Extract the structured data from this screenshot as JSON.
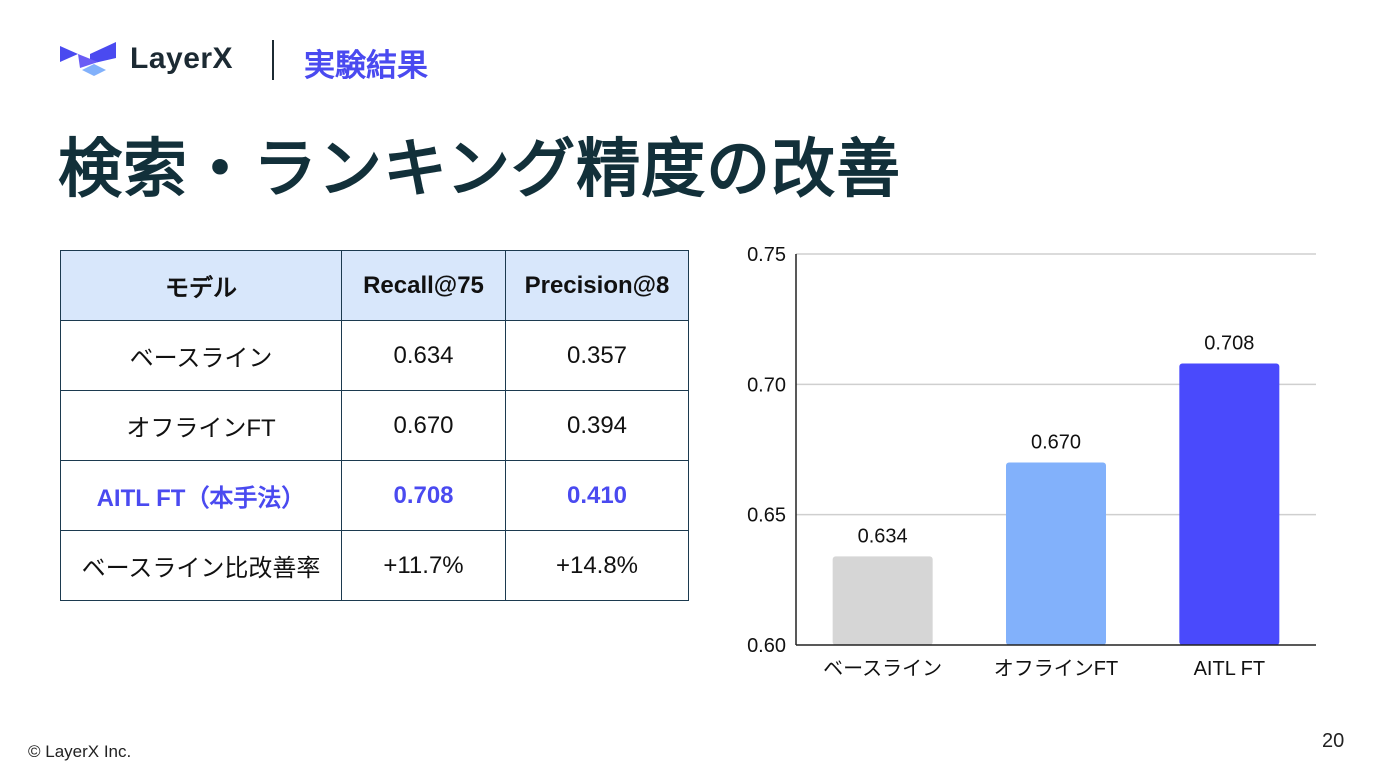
{
  "header": {
    "logo_text": "LayerX",
    "section": "実験結果"
  },
  "title": "検索・ランキング精度の改善",
  "table": {
    "headers": [
      "モデル",
      "Recall@75",
      "Precision@8"
    ],
    "rows": [
      [
        "ベースライン",
        "0.634",
        "0.357"
      ],
      [
        "オフラインFT",
        "0.670",
        "0.394"
      ],
      [
        "AITL FT（本手法）",
        "0.708",
        "0.410"
      ],
      [
        "ベースライン比改善率",
        "+11.7%",
        "+14.8%"
      ]
    ],
    "highlight_row": 2
  },
  "chart_data": {
    "type": "bar",
    "categories": [
      "ベースライン",
      "オフラインFT",
      "AITL FT"
    ],
    "values": [
      0.634,
      0.67,
      0.708
    ],
    "data_labels": [
      "0.634",
      "0.670",
      "0.708"
    ],
    "colors": [
      "#d6d6d6",
      "#82b1fb",
      "#4a4afc"
    ],
    "ylim": [
      0.6,
      0.75
    ],
    "yticks": [
      "0.60",
      "0.65",
      "0.70",
      "0.75"
    ],
    "grid": true,
    "title": "",
    "xlabel": "",
    "ylabel": ""
  },
  "footer": {
    "copyright": "© LayerX Inc.",
    "page_number": "20"
  }
}
